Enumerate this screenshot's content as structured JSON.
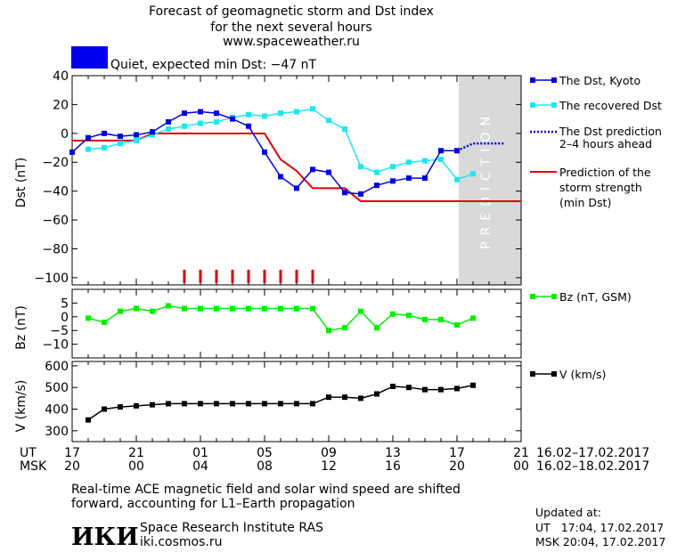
{
  "header": {
    "title_line1": "Forecast of geomagnetic storm and Dst index",
    "title_line2": "for the next several hours",
    "url": "www.spaceweather.ru",
    "status_text": "Quiet, expected min Dst: −47 nT",
    "status_color": "#0000ee"
  },
  "prediction_label": "PREDICTION",
  "colors": {
    "dst_kyoto": "#0000dd",
    "recovered": "#22e5ee",
    "prediction": "#0000dd",
    "storm": "#dd0000",
    "bz": "#00ee00",
    "v": "#000000",
    "prediction_zone": "#d9d9d9"
  },
  "chart_data": [
    {
      "type": "line",
      "id": "dst",
      "ylabel": "Dst (nT)",
      "ylim": [
        -105,
        40
      ],
      "yticks": [
        40,
        20,
        0,
        -20,
        -40,
        -60,
        -80,
        -100
      ],
      "xlim": [
        0,
        28
      ],
      "prediction_zone": [
        24,
        28
      ],
      "series": [
        {
          "name": "The Dst, Kyoto",
          "x": [
            0,
            1,
            2,
            3,
            4,
            5,
            6,
            7,
            8,
            9,
            10,
            11,
            12,
            13,
            14,
            15,
            16,
            17,
            18,
            19,
            20,
            21,
            22,
            23,
            24
          ],
          "values": [
            -13,
            -3,
            0,
            -2,
            -1,
            1,
            8,
            14,
            15,
            14,
            10,
            5,
            -13,
            -30,
            -38,
            -25,
            -27,
            -41,
            -42,
            -36,
            -33,
            -31,
            -31,
            -12,
            -12
          ]
        },
        {
          "name": "The recovered Dst",
          "x": [
            1,
            2,
            3,
            4,
            5,
            6,
            7,
            8,
            9,
            10,
            11,
            12,
            13,
            14,
            15,
            16,
            17,
            18,
            19,
            20,
            21,
            22,
            23,
            24,
            25
          ],
          "values": [
            -11,
            -10,
            -7,
            -5,
            -1,
            3,
            5,
            7,
            8,
            11,
            13,
            12,
            14,
            15,
            17,
            9,
            3,
            -23,
            -27,
            -23,
            -20,
            -19,
            -18,
            -32,
            -28
          ]
        },
        {
          "name": "The Dst prediction 2–4 hours ahead",
          "x": [
            24,
            25,
            26,
            27
          ],
          "values": [
            -12,
            -7,
            -7,
            -7
          ]
        },
        {
          "name": "Prediction of the storm strength (min Dst)",
          "x": [
            0,
            4,
            5,
            12,
            13,
            14,
            15,
            17,
            18,
            28
          ],
          "values": [
            -5,
            -5,
            0,
            0,
            -18,
            -26,
            -38,
            -38,
            -47,
            -47
          ]
        }
      ],
      "storm_markers": [
        7,
        8,
        9,
        10,
        11,
        12,
        13,
        14,
        15
      ]
    },
    {
      "type": "line",
      "id": "bz",
      "ylabel": "Bz (nT)",
      "ylim": [
        -15,
        10
      ],
      "yticks": [
        5,
        0,
        -5,
        -10
      ],
      "xlim": [
        0,
        28
      ],
      "series": [
        {
          "name": "Bz (nT, GSM)",
          "x": [
            1,
            2,
            3,
            4,
            5,
            6,
            7,
            8,
            9,
            10,
            11,
            12,
            13,
            14,
            15,
            16,
            17,
            18,
            19,
            20,
            21,
            22,
            23,
            24,
            25
          ],
          "values": [
            -0.5,
            -2,
            2,
            3,
            2,
            4,
            3,
            3,
            3,
            3,
            3,
            3,
            3,
            3,
            3,
            -5,
            -4,
            2,
            -4,
            1,
            0.5,
            -1,
            -1,
            -3,
            -0.5
          ]
        }
      ]
    },
    {
      "type": "line",
      "id": "v",
      "ylabel": "V (km/s)",
      "ylim": [
        250,
        620
      ],
      "yticks": [
        600,
        500,
        400,
        300
      ],
      "xlim": [
        0,
        28
      ],
      "series": [
        {
          "name": "V (km/s)",
          "x": [
            1,
            2,
            3,
            4,
            5,
            6,
            7,
            8,
            9,
            10,
            11,
            12,
            13,
            14,
            15,
            16,
            17,
            18,
            19,
            20,
            21,
            22,
            23,
            24,
            25
          ],
          "values": [
            350,
            400,
            410,
            415,
            420,
            425,
            425,
            425,
            425,
            425,
            425,
            425,
            425,
            425,
            425,
            455,
            455,
            450,
            470,
            505,
            500,
            490,
            490,
            495,
            510
          ]
        }
      ]
    }
  ],
  "x_axis": {
    "ut_label": "UT",
    "msk_label": "MSK",
    "ticks": [
      {
        "x": 0,
        "ut": "17",
        "msk": "20"
      },
      {
        "x": 4,
        "ut": "21",
        "msk": "00"
      },
      {
        "x": 8,
        "ut": "01",
        "msk": "04"
      },
      {
        "x": 12,
        "ut": "05",
        "msk": "08"
      },
      {
        "x": 16,
        "ut": "09",
        "msk": "12"
      },
      {
        "x": 20,
        "ut": "13",
        "msk": "16"
      },
      {
        "x": 24,
        "ut": "17",
        "msk": "20"
      },
      {
        "x": 28,
        "ut": "21",
        "msk": "00"
      }
    ],
    "ut_range": "16.02–17.02.2017",
    "msk_range": "16.02–18.02.2017"
  },
  "legend": {
    "dst_kyoto": "The Dst, Kyoto",
    "recovered": "The recovered Dst",
    "prediction_l1": "The Dst prediction",
    "prediction_l2": "2–4 hours ahead",
    "storm_l1": "Prediction of the",
    "storm_l2": "storm strength",
    "storm_l3": "(min Dst)",
    "bz": "Bz (nT, GSM)",
    "v": "V (km/s)"
  },
  "footer": {
    "note_line1": "Real-time ACE magnetic field and solar wind speed are shifted",
    "note_line2": "forward, accounting for L1–Earth propagation",
    "logo": "ИКИ",
    "institute": "Space Research Institute RAS",
    "site": "iki.cosmos.ru",
    "updated_label": "Updated at:",
    "updated_ut": "UT   17:04, 17.02.2017",
    "updated_msk": "MSK 20:04, 17.02.2017"
  }
}
